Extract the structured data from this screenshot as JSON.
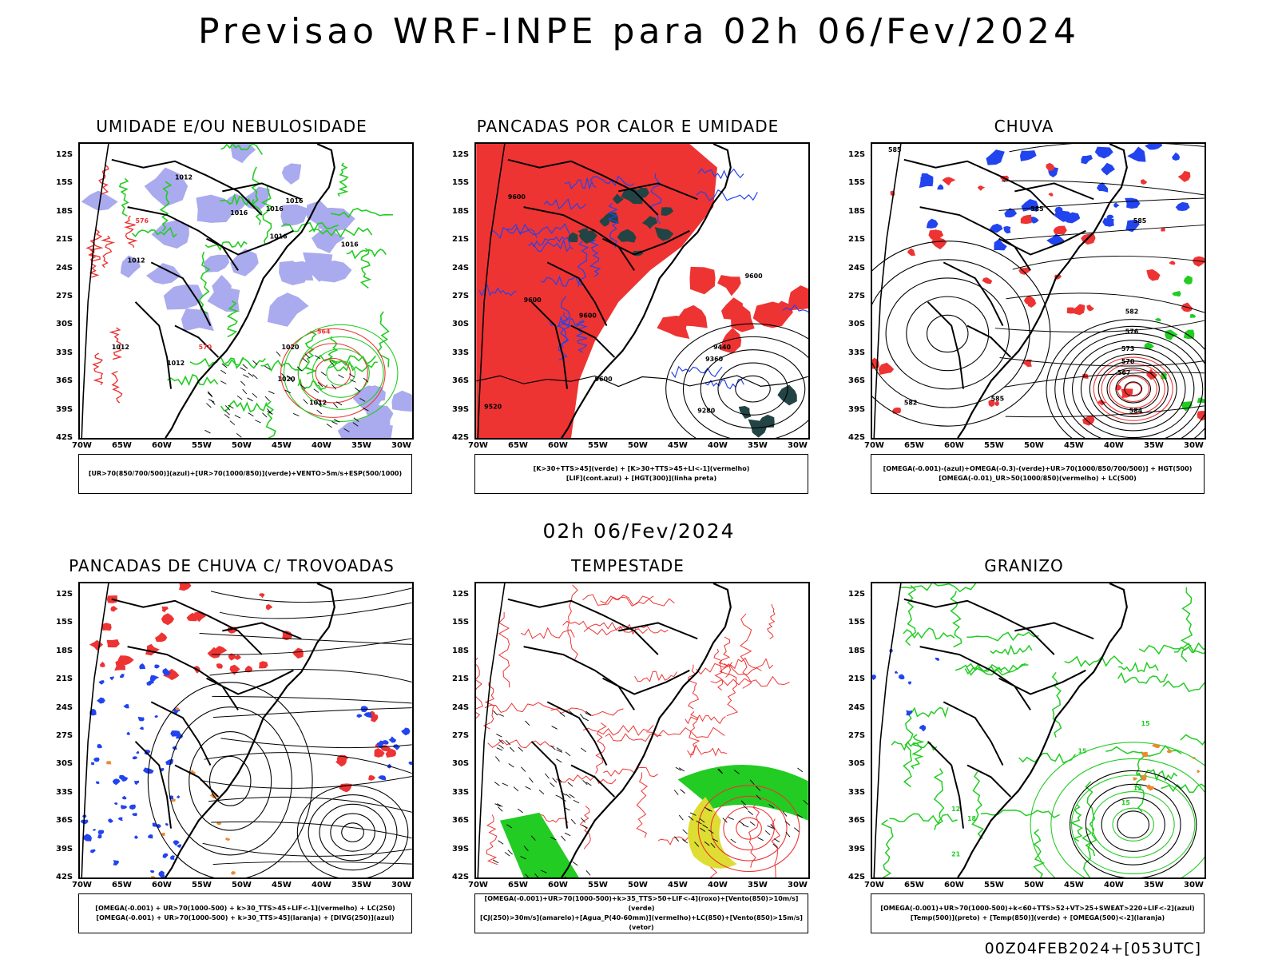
{
  "header": {
    "title": "Previsao WRF-INPE  para 02h 06/Fev/2024",
    "mid_date": "02h 06/Fev/2024",
    "footer_stamp": "00Z04FEB2024+[053UTC]"
  },
  "axes": {
    "lat": [
      "12S",
      "15S",
      "18S",
      "21S",
      "24S",
      "27S",
      "30S",
      "33S",
      "36S",
      "39S",
      "42S"
    ],
    "lon": [
      "70W",
      "65W",
      "60W",
      "55W",
      "50W",
      "45W",
      "40W",
      "35W",
      "30W"
    ]
  },
  "colors": {
    "blue": "#2244ee",
    "green": "#22cc22",
    "red": "#ee3333",
    "light_violet": "#aaaaee",
    "dark_teal": "#224444",
    "yellow": "#dddd33",
    "orange": "#ee8833",
    "black": "#000000"
  },
  "panels": [
    {
      "id": "umidade",
      "title": "UMIDADE E/OU NEBULOSIDADE",
      "legend": [
        "[UR>70(850/700/500)](azul)+[UR>70(1000/850)](verde)+VENTO>5m/s+ESP(500/1000)"
      ],
      "contour_labels": [
        "1012",
        "1012",
        "1016",
        "1016",
        "1016",
        "1016",
        "1020",
        "1012",
        "1012",
        "1016",
        "576",
        "570",
        "564",
        "1020",
        "1012"
      ]
    },
    {
      "id": "pancadas_calor",
      "title": "PANCADAS POR CALOR E UMIDADE",
      "legend": [
        "[K>30+TTS>45](verde) + [K>30+TTS>45+LI<-1](vermelho)",
        "[LIF](cont.azul) + [HGT(300)](linha preta)"
      ],
      "contour_labels": [
        "9600",
        "9600",
        "9600",
        "9600",
        "9600",
        "9440",
        "9360",
        "9280",
        "9520"
      ]
    },
    {
      "id": "chuva",
      "title": "CHUVA",
      "legend": [
        "[OMEGA(-0.001)-(azul)+OMEGA(-0.3)-(verde)+UR>70(1000/850/700/500)] + HGT(500)",
        "[OMEGA(-0.01)_UR>50(1000/850)(vermelho) + LC(500)"
      ],
      "contour_labels": [
        "585",
        "585",
        "585",
        "582",
        "582",
        "576",
        "573",
        "570",
        "567",
        "584",
        "585"
      ]
    },
    {
      "id": "pancadas_trovoadas",
      "title": "PANCADAS DE CHUVA C/ TROVOADAS",
      "legend": [
        "[OMEGA(-0.001) + UR>70(1000-500) + k>30_TTS>45+LIF<-1](vermelho) + LC(250)",
        "[OMEGA(-0.001) + UR>70(1000-500) + k>30_TTS>45](laranja) + [DIVG(250)](azul)"
      ],
      "contour_labels": []
    },
    {
      "id": "tempestade",
      "title": "TEMPESTADE",
      "legend": [
        "[OMEGA(-0.001)+UR>70(1000-500)+k>35_TTS>50+LIF<-4](roxo)+[Vento(850)>10m/s](verde)",
        "[CJ(250)>30m/s](amarelo)+[Agua_P(40-60mm)](vermelho)+LC(850)+[Vento(850)>15m/s](vetor)"
      ],
      "contour_labels": []
    },
    {
      "id": "granizo",
      "title": "GRANIZO",
      "legend": [
        "[OMEGA(-0.001)+UR>70(1000-500)+k<60+TTS>52+VT>25+SWEAT>220+LIF<-2](azul)",
        "[Temp(500)](preto) + [Temp(850)](verde) + [OMEGA(500)<-2](laranja)"
      ],
      "contour_labels": [
        "15",
        "15",
        "12",
        "15",
        "12",
        "18",
        "21"
      ]
    }
  ]
}
